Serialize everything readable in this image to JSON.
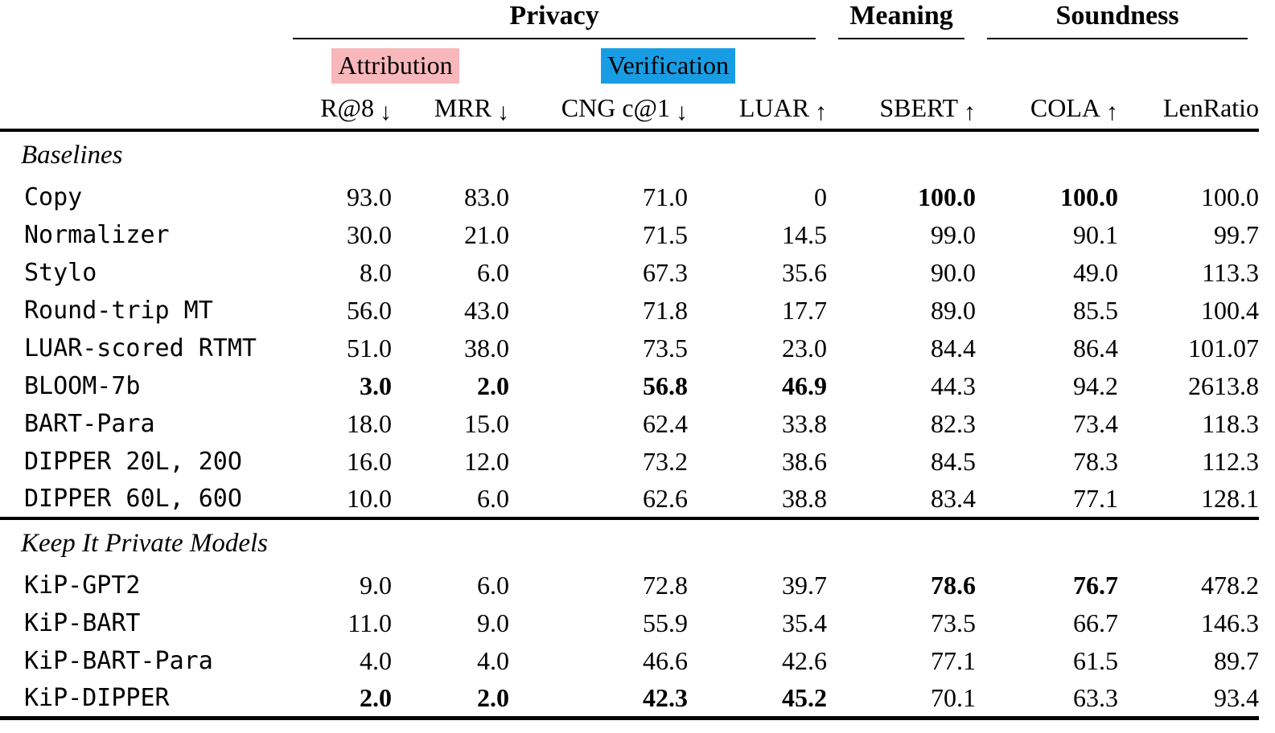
{
  "colors": {
    "attribution_highlight": "#f8b7bb",
    "verification_highlight": "#189de4",
    "rule": "#000000",
    "background": "#ffffff"
  },
  "header": {
    "groups": [
      {
        "label": "Privacy",
        "span": 4
      },
      {
        "label": "Meaning",
        "span": 1
      },
      {
        "label": "Soundness",
        "span": 2
      }
    ],
    "subgroups": [
      {
        "label": "Attribution",
        "highlight": "pink",
        "span": 2
      },
      {
        "label": "Verification",
        "highlight": "blue",
        "span": 2
      }
    ],
    "columns": [
      {
        "name": "R@8",
        "arrow": "↓",
        "key": "r_at_8"
      },
      {
        "name": "MRR",
        "arrow": "↓",
        "key": "mrr"
      },
      {
        "name": "CNG c@1",
        "arrow": "↓",
        "key": "cng_c_at_1"
      },
      {
        "name": "LUAR",
        "arrow": "↑",
        "key": "luar"
      },
      {
        "name": "SBERT",
        "arrow": "↑",
        "key": "sbert"
      },
      {
        "name": "COLA",
        "arrow": "↑",
        "key": "cola"
      },
      {
        "name": "LenRatio",
        "arrow": "",
        "key": "len_ratio"
      }
    ]
  },
  "sections": [
    {
      "title": "Baselines",
      "rows": [
        {
          "label": "Copy",
          "values": [
            "93.0",
            "83.0",
            "71.0",
            "0",
            "100.0",
            "100.0",
            "100.0"
          ],
          "bold": [
            false,
            false,
            false,
            false,
            true,
            true,
            false
          ]
        },
        {
          "label": "Normalizer",
          "values": [
            "30.0",
            "21.0",
            "71.5",
            "14.5",
            "99.0",
            "90.1",
            "99.7"
          ],
          "bold": [
            false,
            false,
            false,
            false,
            false,
            false,
            false
          ]
        },
        {
          "label": "Stylo",
          "values": [
            "8.0",
            "6.0",
            "67.3",
            "35.6",
            "90.0",
            "49.0",
            "113.3"
          ],
          "bold": [
            false,
            false,
            false,
            false,
            false,
            false,
            false
          ]
        },
        {
          "label": "Round-trip MT",
          "values": [
            "56.0",
            "43.0",
            "71.8",
            "17.7",
            "89.0",
            "85.5",
            "100.4"
          ],
          "bold": [
            false,
            false,
            false,
            false,
            false,
            false,
            false
          ]
        },
        {
          "label": "LUAR-scored RTMT",
          "values": [
            "51.0",
            "38.0",
            "73.5",
            "23.0",
            "84.4",
            "86.4",
            "101.07"
          ],
          "bold": [
            false,
            false,
            false,
            false,
            false,
            false,
            false
          ]
        },
        {
          "label": "BLOOM-7b",
          "values": [
            "3.0",
            "2.0",
            "56.8",
            "46.9",
            "44.3",
            "94.2",
            "2613.8"
          ],
          "bold": [
            true,
            true,
            true,
            true,
            false,
            false,
            false
          ]
        },
        {
          "label": "BART-Para",
          "values": [
            "18.0",
            "15.0",
            "62.4",
            "33.8",
            "82.3",
            "73.4",
            "118.3"
          ],
          "bold": [
            false,
            false,
            false,
            false,
            false,
            false,
            false
          ]
        },
        {
          "label": "DIPPER 20L, 20O",
          "values": [
            "16.0",
            "12.0",
            "73.2",
            "38.6",
            "84.5",
            "78.3",
            "112.3"
          ],
          "bold": [
            false,
            false,
            false,
            false,
            false,
            false,
            false
          ]
        },
        {
          "label": "DIPPER 60L, 60O",
          "values": [
            "10.0",
            "6.0",
            "62.6",
            "38.8",
            "83.4",
            "77.1",
            "128.1"
          ],
          "bold": [
            false,
            false,
            false,
            false,
            false,
            false,
            false
          ]
        }
      ]
    },
    {
      "title": "Keep It Private Models",
      "rows": [
        {
          "label": "KiP-GPT2",
          "values": [
            "9.0",
            "6.0",
            "72.8",
            "39.7",
            "78.6",
            "76.7",
            "478.2"
          ],
          "bold": [
            false,
            false,
            false,
            false,
            true,
            true,
            false
          ]
        },
        {
          "label": "KiP-BART",
          "values": [
            "11.0",
            "9.0",
            "55.9",
            "35.4",
            "73.5",
            "66.7",
            "146.3"
          ],
          "bold": [
            false,
            false,
            false,
            false,
            false,
            false,
            false
          ]
        },
        {
          "label": "KiP-BART-Para",
          "values": [
            "4.0",
            "4.0",
            "46.6",
            "42.6",
            "77.1",
            "61.5",
            "89.7"
          ],
          "bold": [
            false,
            false,
            false,
            false,
            false,
            false,
            false
          ]
        },
        {
          "label": "KiP-DIPPER",
          "values": [
            "2.0",
            "2.0",
            "42.3",
            "45.2",
            "70.1",
            "63.3",
            "93.4"
          ],
          "bold": [
            true,
            true,
            true,
            true,
            false,
            false,
            false
          ]
        }
      ]
    }
  ]
}
